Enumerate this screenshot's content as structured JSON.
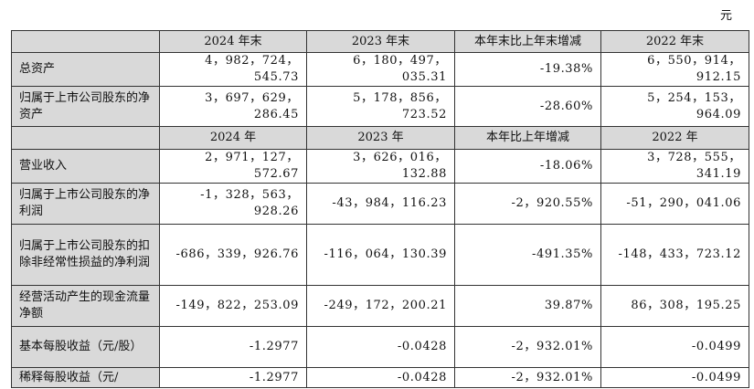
{
  "unit": "元",
  "header1": {
    "c1": "2024 年末",
    "c2": "2023 年末",
    "c3": "本年末比上年末增减",
    "c4": "2022 年末"
  },
  "header2": {
    "c1": "2024 年",
    "c2": "2023 年",
    "c3": "本年比上年增减",
    "c4": "2022 年"
  },
  "rows_a": [
    {
      "label": "总资产",
      "v1": "4，982，724，545.73",
      "v2": "6，180，497，035.31",
      "v3": "-19.38%",
      "v4": "6，550，914，912.15"
    },
    {
      "label": "归属于上市公司股东的净资产",
      "v1": "3，697，629，286.45",
      "v2": "5，178，856，723.52",
      "v3": "-28.60%",
      "v4": "5，254，153，964.09"
    }
  ],
  "rows_b": [
    {
      "label": "营业收入",
      "v1": "2，971，127，572.67",
      "v2": "3，626，016，132.88",
      "v3": "-18.06%",
      "v4": "3，728，555，341.19"
    },
    {
      "label": "归属于上市公司股东的净利润",
      "v1": "-1，328，563，928.26",
      "v2": "-43，984，116.23",
      "v3": "-2，920.55%",
      "v4": "-51，290，041.06"
    },
    {
      "label": "归属于上市公司股东的扣除非经常性损益的净利润",
      "v1": "-686，339，926.76",
      "v2": "-116，064，130.39",
      "v3": "-491.35%",
      "v4": "-148，433，723.12"
    },
    {
      "label": "经营活动产生的现金流量净额",
      "v1": "-149，822，253.09",
      "v2": "-249，172，200.21",
      "v3": "39.87%",
      "v4": "86，308，195.25"
    },
    {
      "label": "基本每股收益（元/股）",
      "v1": "-1.2977",
      "v2": "-0.0428",
      "v3": "-2，932.01%",
      "v4": "-0.0499"
    },
    {
      "label": "稀释每股收益（元/",
      "v1": "-1.2977",
      "v2": "-0.0428",
      "v3": "-2，932.01%",
      "v4": "-0.0499"
    }
  ]
}
